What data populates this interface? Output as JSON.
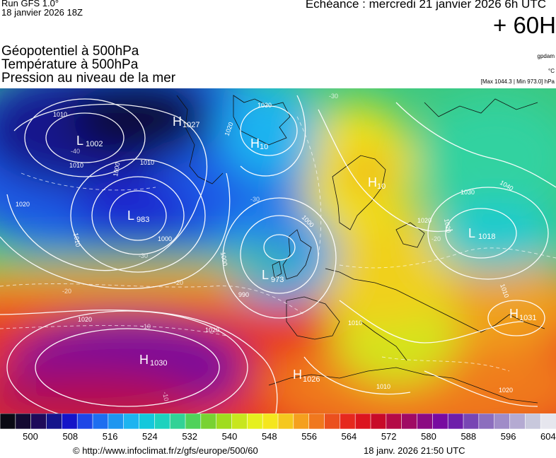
{
  "header": {
    "run_title": "Run GFS 1.0°",
    "run_date": "18 janvier 2026 18Z",
    "echeance": "Echéance : mercredi 21 janvier 2026 6h UTC",
    "horizon": "+ 60H"
  },
  "parameters": [
    {
      "label": "Géopotentiel à 500hPa",
      "unit": "gpdam"
    },
    {
      "label": "Température à 500hPa",
      "unit": "°C"
    },
    {
      "label": "Pression au niveau de la mer",
      "unit": "[Max 1044.3 | Min 973.0] hPa"
    }
  ],
  "pressure_centers": [
    {
      "type": "L",
      "value": "1002"
    },
    {
      "type": "H",
      "value": "1027"
    },
    {
      "type": "H",
      "value": "10"
    },
    {
      "type": "L",
      "value": "983"
    },
    {
      "type": "L",
      "value": "973"
    },
    {
      "type": "H",
      "value": "10"
    },
    {
      "type": "L",
      "value": "1018"
    },
    {
      "type": "H",
      "value": "1031"
    },
    {
      "type": "H",
      "value": "1030"
    },
    {
      "type": "H",
      "value": "1026"
    }
  ],
  "isobar_labels": [
    "1010",
    "1010",
    "1010",
    "1030",
    "1020",
    "1020",
    "1000",
    "1000",
    "1010",
    "1000",
    "990",
    "1000",
    "1020",
    "1020",
    "1030",
    "1040",
    "1020",
    "1020",
    "1010",
    "1010",
    "1020",
    "1010"
  ],
  "isotherm_labels": [
    "-40",
    "-30",
    "-30",
    "-20",
    "-20",
    "-20",
    "-10",
    "-10",
    "-30"
  ],
  "colorbar": {
    "ticks": [
      "500",
      "508",
      "516",
      "524",
      "532",
      "540",
      "548",
      "556",
      "564",
      "572",
      "580",
      "588",
      "596",
      "604"
    ],
    "colors": [
      "#0a0a14",
      "#140a32",
      "#1e0a5a",
      "#14148c",
      "#1414c8",
      "#1e46e6",
      "#1e6ef0",
      "#1e96f0",
      "#1eb4f0",
      "#14c8dc",
      "#1ed2be",
      "#32d296",
      "#50d25a",
      "#78d232",
      "#a0dc1e",
      "#c8e61e",
      "#e6f01e",
      "#f5e61e",
      "#f5c81e",
      "#f5a01e",
      "#f0781e",
      "#eb501e",
      "#e6281e",
      "#dc141e",
      "#c80a28",
      "#b40a46",
      "#a00a64",
      "#8c0a82",
      "#780aa0",
      "#6e1eaa",
      "#7846b4",
      "#8c6ebe",
      "#a08cc8",
      "#b4aad2",
      "#c8c8dc",
      "#e6e6ee"
    ]
  },
  "footer": {
    "url": "© http://www.infoclimat.fr/z/gfs/europe/500/60",
    "generated": "18 janv. 2026 21:50 UTC"
  }
}
